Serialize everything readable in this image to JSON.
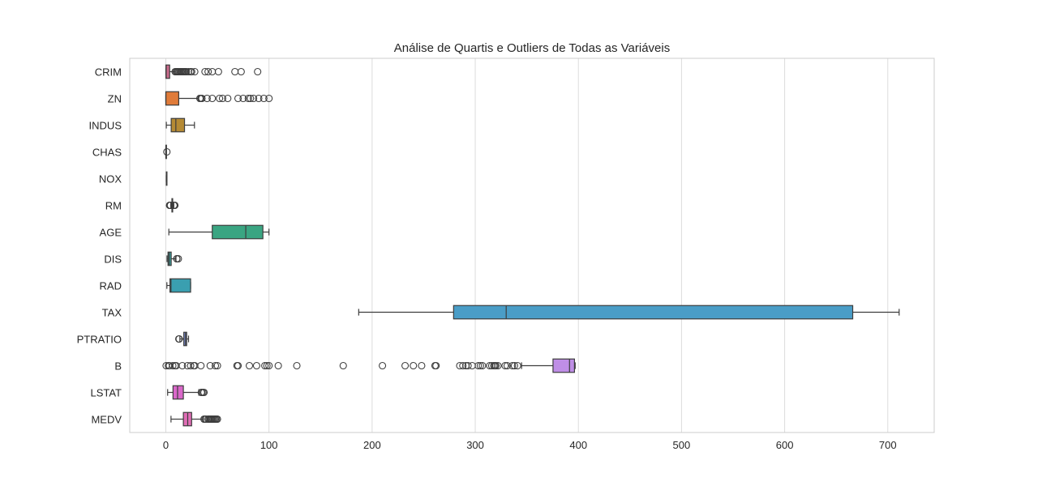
{
  "chart_data": {
    "type": "boxplot",
    "orientation": "horizontal",
    "title": "Análise de Quartis e Outliers de Todas as Variáveis",
    "xlabel": "",
    "ylabel": "",
    "xlim": [
      -35,
      745
    ],
    "xticks": [
      0,
      100,
      200,
      300,
      400,
      500,
      600,
      700
    ],
    "grid": "vertical",
    "series": [
      {
        "name": "CRIM",
        "color": "#c96b8c",
        "whisker_low": 0.006,
        "q1": 0.08,
        "median": 0.26,
        "q3": 3.68,
        "whisker_high": 8.9,
        "outliers": [
          9,
          10,
          11,
          12,
          13,
          14,
          15,
          16,
          17,
          18,
          19,
          20,
          22,
          24,
          25,
          28,
          38,
          41,
          45,
          51,
          67,
          73,
          89
        ]
      },
      {
        "name": "ZN",
        "color": "#e07b39",
        "whisker_low": 0,
        "q1": 0,
        "median": 0,
        "q3": 12.5,
        "whisker_high": 31.5,
        "outliers": [
          33,
          34,
          35,
          40,
          45,
          52,
          55,
          60,
          70,
          75,
          80,
          82,
          85,
          90,
          95,
          100
        ]
      },
      {
        "name": "INDUS",
        "color": "#b58a34",
        "whisker_low": 0.46,
        "q1": 5.19,
        "median": 9.69,
        "q3": 18.1,
        "whisker_high": 27.74,
        "outliers": []
      },
      {
        "name": "CHAS",
        "color": "#8a9a3a",
        "whisker_low": 0,
        "q1": 0,
        "median": 0,
        "q3": 0,
        "whisker_high": 0,
        "outliers": [
          1
        ]
      },
      {
        "name": "NOX",
        "color": "#5aa65a",
        "whisker_low": 0.385,
        "q1": 0.449,
        "median": 0.538,
        "q3": 0.624,
        "whisker_high": 0.871,
        "outliers": []
      },
      {
        "name": "RM",
        "color": "#3aa56a",
        "whisker_low": 4.8,
        "q1": 5.89,
        "median": 6.21,
        "q3": 6.62,
        "whisker_high": 7.7,
        "outliers": [
          3.6,
          3.9,
          4.1,
          4.5,
          7.8,
          8.0,
          8.3,
          8.7
        ]
      },
      {
        "name": "AGE",
        "color": "#3aa582",
        "whisker_low": 2.9,
        "q1": 45.0,
        "median": 77.5,
        "q3": 94.1,
        "whisker_high": 100,
        "outliers": []
      },
      {
        "name": "DIS",
        "color": "#3aa29e",
        "whisker_low": 1.13,
        "q1": 2.1,
        "median": 3.21,
        "q3": 5.19,
        "whisker_high": 9.82,
        "outliers": [
          10.6,
          10.7,
          12.1
        ]
      },
      {
        "name": "RAD",
        "color": "#3a9fb0",
        "whisker_low": 1,
        "q1": 4,
        "median": 5,
        "q3": 24,
        "whisker_high": 24,
        "outliers": []
      },
      {
        "name": "TAX",
        "color": "#4a9dc7",
        "whisker_low": 187,
        "q1": 279,
        "median": 330,
        "q3": 666,
        "whisker_high": 711,
        "outliers": []
      },
      {
        "name": "PTRATIO",
        "color": "#7d8fd6",
        "whisker_low": 13.6,
        "q1": 17.4,
        "median": 19.05,
        "q3": 20.2,
        "whisker_high": 22,
        "outliers": [
          12.6,
          13.0
        ]
      },
      {
        "name": "B",
        "color": "#bf8ee6",
        "whisker_low": 344.9,
        "q1": 375.4,
        "median": 391.4,
        "q3": 396.2,
        "whisker_high": 396.9,
        "outliers": [
          0.3,
          2.5,
          3.5,
          6.7,
          8.9,
          10,
          16,
          21,
          24,
          27,
          28,
          34,
          43,
          48,
          50,
          69,
          70,
          81,
          88,
          96,
          98,
          100,
          109,
          127,
          172,
          210,
          232,
          240,
          248,
          261,
          262,
          285,
          288,
          291,
          293,
          297,
          303,
          305,
          307,
          314,
          316,
          318,
          319,
          320,
          322,
          329,
          331,
          336,
          338,
          341
        ]
      },
      {
        "name": "LSTAT",
        "color": "#d967c9",
        "whisker_low": 1.73,
        "q1": 6.95,
        "median": 11.36,
        "q3": 16.96,
        "whisker_high": 31.99,
        "outliers": [
          34.4,
          34.8,
          36.0,
          37.0
        ]
      },
      {
        "name": "MEDV",
        "color": "#e06db5",
        "whisker_low": 5,
        "q1": 17.0,
        "median": 21.2,
        "q3": 25.0,
        "whisker_high": 36.5,
        "outliers": [
          37,
          38,
          39,
          41,
          42,
          43,
          44,
          45,
          46,
          47,
          48,
          49,
          50
        ]
      }
    ]
  }
}
